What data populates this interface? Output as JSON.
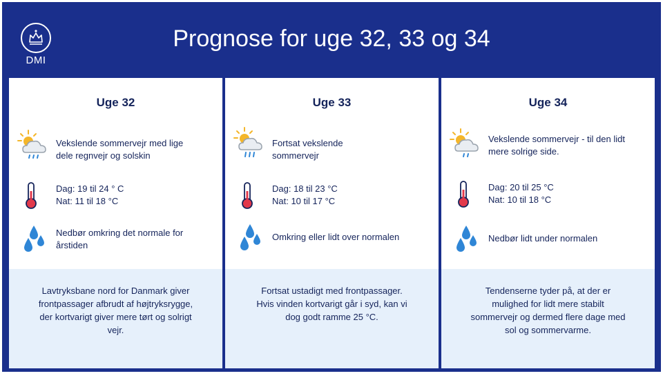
{
  "header": {
    "title": "Prognose for uge 32, 33 og 34",
    "logo_text": "DMI"
  },
  "weeks": [
    {
      "heading": "Uge 32",
      "weather": [
        "Vekslende sommervejr med lige",
        "dele regnvejr og solskin"
      ],
      "temp": [
        "Dag: 19 til 24 ° C",
        "Nat: 11 til 18 °C"
      ],
      "precip": [
        "Nedbør omkring det normale for",
        "årstiden"
      ],
      "summary": [
        "Lavtryksbane nord for Danmark giver",
        "frontpassager afbrudt af højtryksrygge,",
        "der kortvarigt giver mere tørt og solrigt",
        "vejr."
      ]
    },
    {
      "heading": "Uge 33",
      "weather": [
        "Fortsat vekslende",
        "sommervejr"
      ],
      "temp": [
        "Dag: 18 til 23 °C",
        "Nat: 10 til 17 °C"
      ],
      "precip": [
        "Omkring eller lidt over normalen"
      ],
      "summary": [
        "Fortsat ustadigt med frontpassager.",
        "Hvis vinden kortvarigt går i syd, kan vi",
        "dog godt ramme 25 °C."
      ]
    },
    {
      "heading": "Uge 34",
      "weather": [
        "Vekslende sommervejr - til den lidt",
        "mere solrige side."
      ],
      "temp": [
        "Dag: 20 til 25 °C",
        "Nat: 10 til 18 °C"
      ],
      "precip": [
        "Nedbør lidt under normalen"
      ],
      "summary": [
        "Tendenserne tyder på, at der er",
        "mulighed for lidt mere stabilt",
        "sommervejr og dermed flere dage med",
        "sol og sommervarme."
      ]
    }
  ],
  "icons": {
    "weather": "sun-cloud-rain-icon",
    "temp": "thermometer-icon",
    "precip": "raindrops-icon"
  },
  "colors": {
    "frame": "#1a2f8c",
    "summary_bg": "#e6f0fb",
    "text": "#14235a",
    "sun": "#f4b62a",
    "drop": "#2f86d6",
    "thermo": "#e2394b"
  }
}
